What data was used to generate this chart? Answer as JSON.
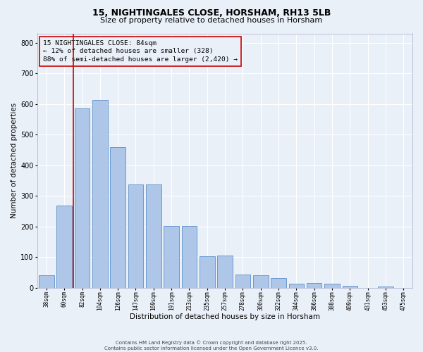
{
  "title": "15, NIGHTINGALES CLOSE, HORSHAM, RH13 5LB",
  "subtitle": "Size of property relative to detached houses in Horsham",
  "xlabel": "Distribution of detached houses by size in Horsham",
  "ylabel": "Number of detached properties",
  "categories": [
    "38sqm",
    "60sqm",
    "82sqm",
    "104sqm",
    "126sqm",
    "147sqm",
    "169sqm",
    "191sqm",
    "213sqm",
    "235sqm",
    "257sqm",
    "278sqm",
    "300sqm",
    "322sqm",
    "344sqm",
    "366sqm",
    "388sqm",
    "409sqm",
    "431sqm",
    "453sqm",
    "475sqm"
  ],
  "values": [
    40,
    268,
    585,
    612,
    460,
    338,
    338,
    202,
    202,
    103,
    105,
    43,
    42,
    33,
    13,
    15,
    13,
    7,
    0,
    5,
    0
  ],
  "bar_color": "#aec6e8",
  "bar_edge_color": "#5b8fc9",
  "bg_color": "#eaf0f8",
  "grid_color": "#ffffff",
  "marker_x": "82sqm",
  "marker_color": "#cc0000",
  "annotation_lines": [
    "15 NIGHTINGALES CLOSE: 84sqm",
    "← 12% of detached houses are smaller (328)",
    "88% of semi-detached houses are larger (2,420) →"
  ],
  "annotation_box_color": "#cc0000",
  "footer": "Contains HM Land Registry data © Crown copyright and database right 2025.\nContains public sector information licensed under the Open Government Licence v3.0.",
  "ylim": [
    0,
    830
  ],
  "yticks": [
    0,
    100,
    200,
    300,
    400,
    500,
    600,
    700,
    800
  ],
  "title_fontsize": 9,
  "subtitle_fontsize": 8,
  "xlabel_fontsize": 7.5,
  "ylabel_fontsize": 7.5,
  "xtick_fontsize": 5.5,
  "ytick_fontsize": 7,
  "ann_fontsize": 6.8,
  "footer_fontsize": 5
}
